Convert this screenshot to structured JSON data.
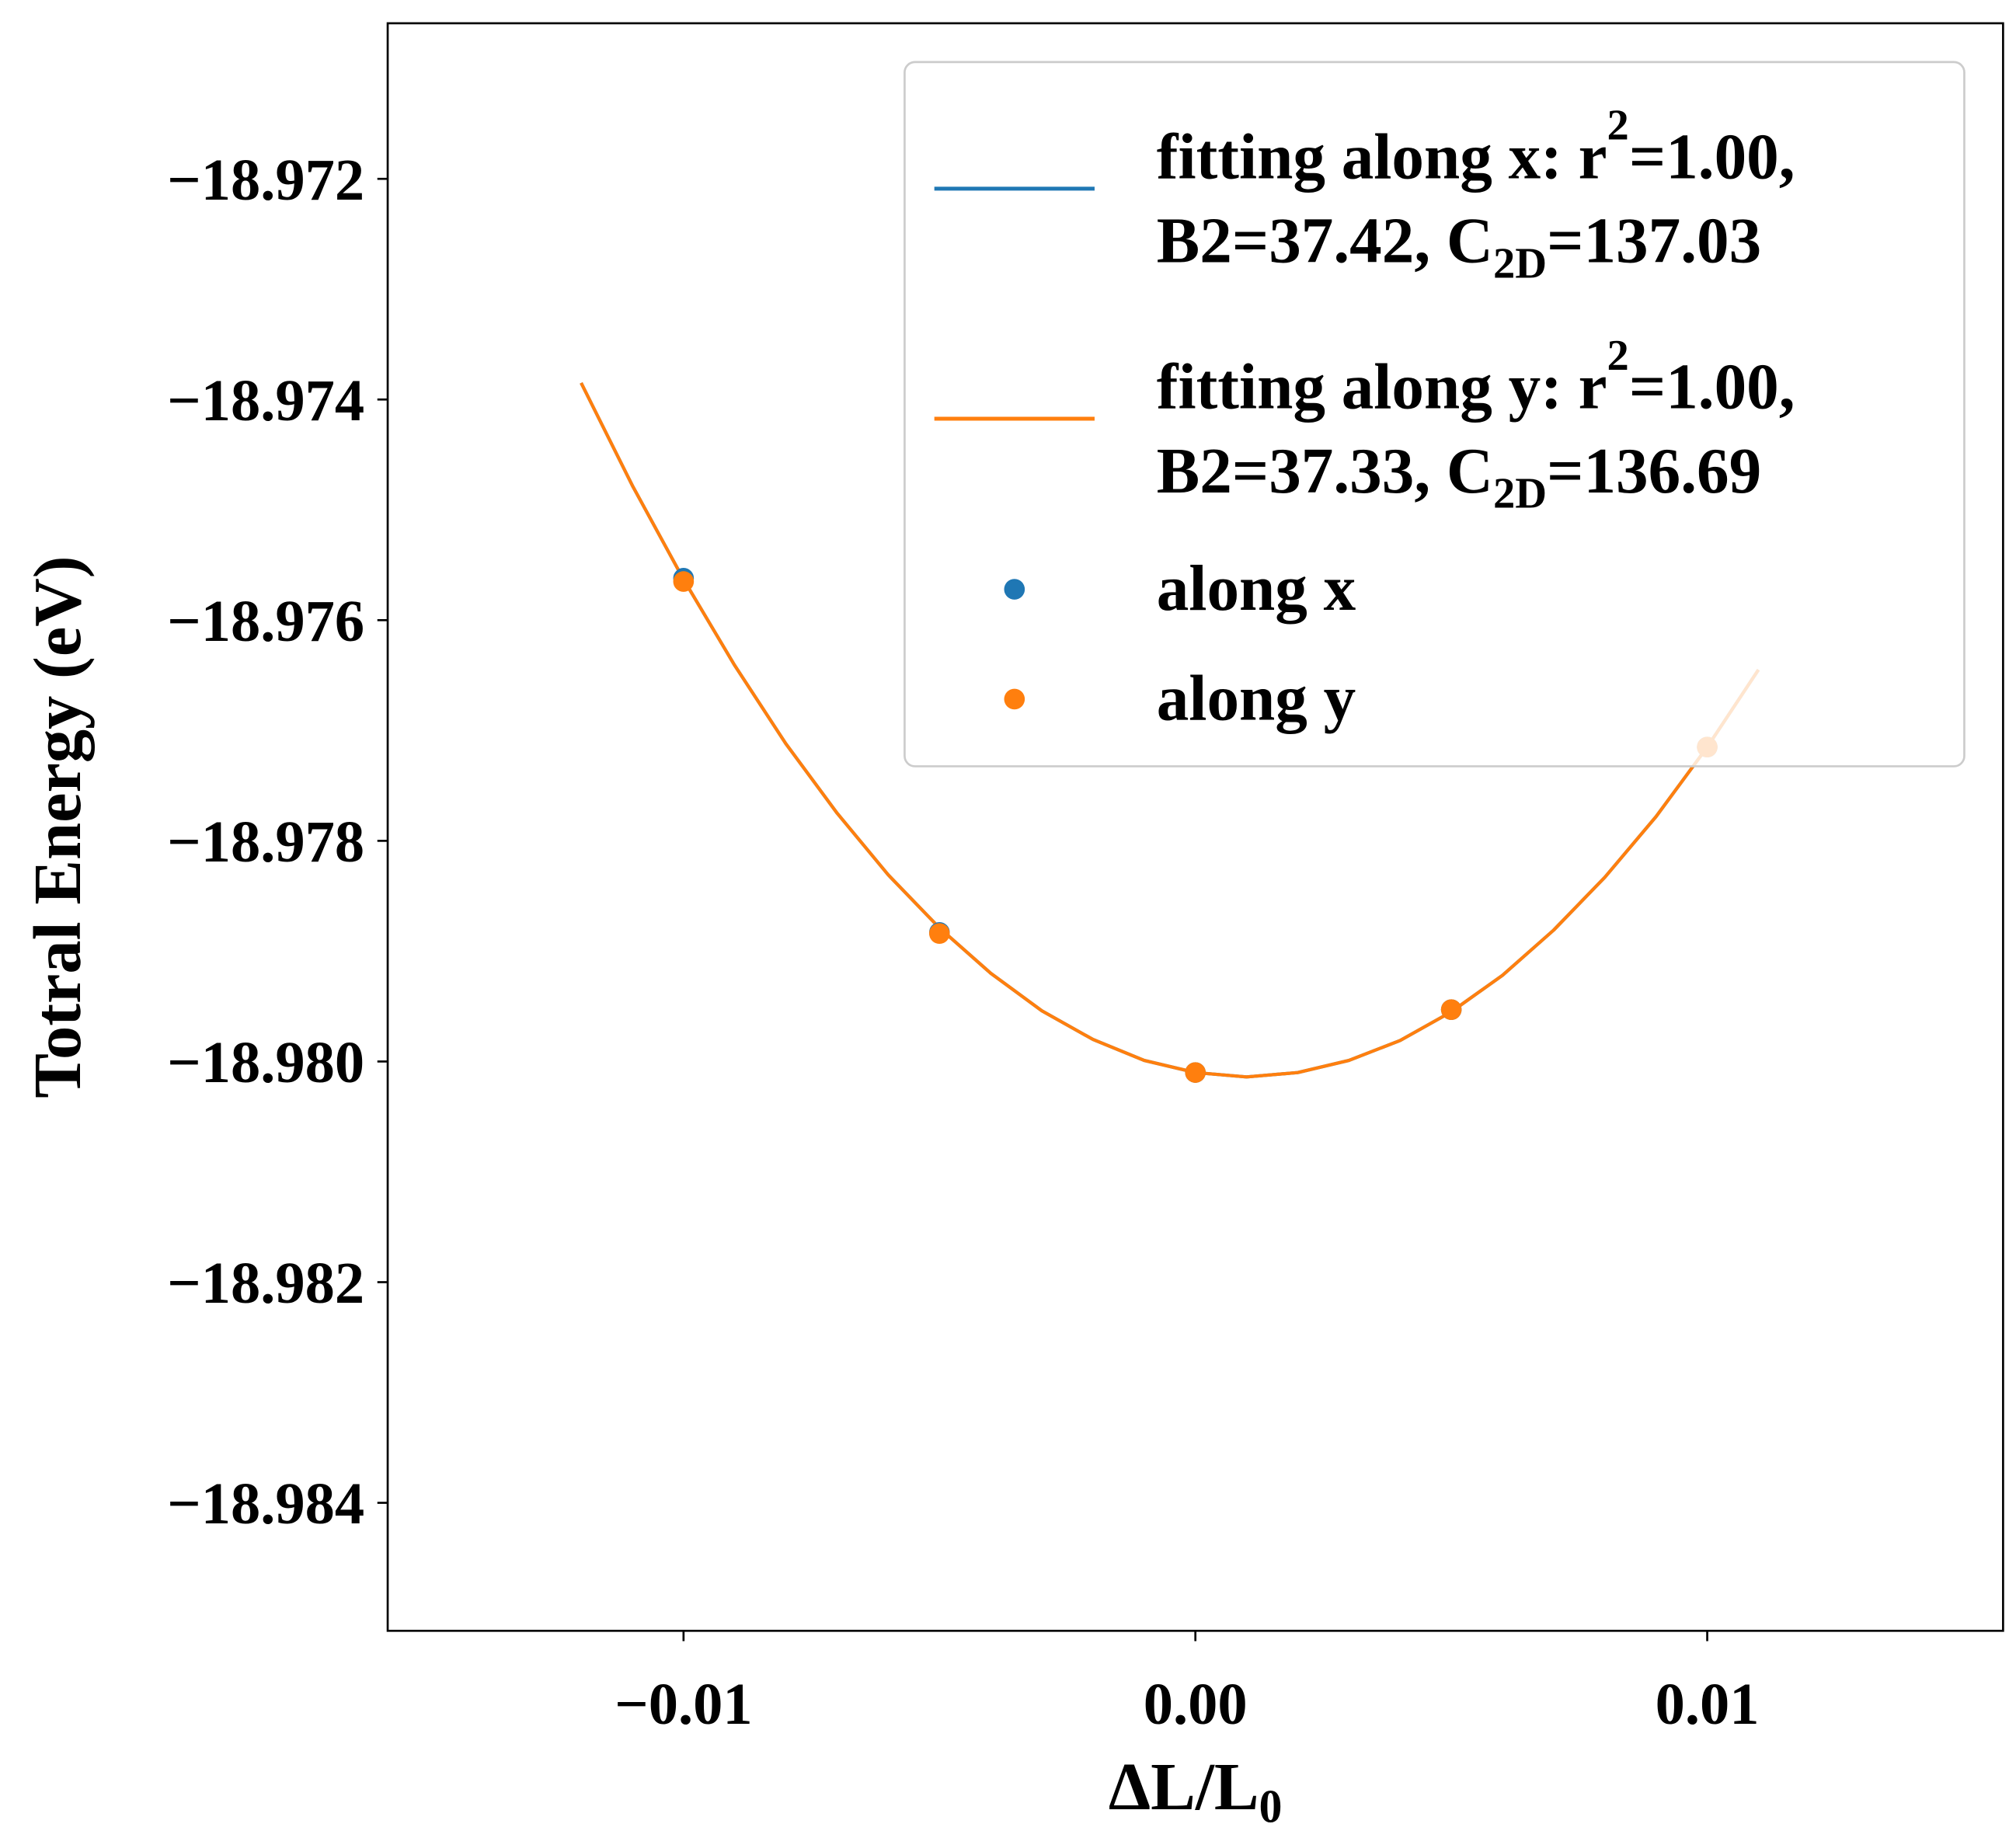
{
  "chart_data": {
    "type": "line",
    "title": "",
    "xlabel": "ΔL/L",
    "xlabel_sub": "0",
    "ylabel": "Totral Energy (eV)",
    "xlim": [
      -0.01578,
      0.01578
    ],
    "ylim": [
      -18.98516,
      -18.97059
    ],
    "x_ticks": [
      -0.01,
      0.0,
      0.01
    ],
    "x_tick_labels": [
      "−0.01",
      "0.00",
      "0.01"
    ],
    "y_ticks": [
      -18.972,
      -18.974,
      -18.976,
      -18.978,
      -18.98,
      -18.982,
      -18.984
    ],
    "y_tick_labels": [
      "−18.972",
      "−18.974",
      "−18.976",
      "−18.978",
      "−18.980",
      "−18.982",
      "−18.984"
    ],
    "grid": false,
    "legend_placement": "top-right",
    "colors": {
      "x": "#1f77b4",
      "y": "#ff7f0e"
    },
    "fit_x": [
      -0.012,
      -0.011,
      -0.01,
      -0.009,
      -0.008,
      -0.007,
      -0.006,
      -0.005,
      -0.004,
      -0.003,
      -0.002,
      -0.001,
      0.0,
      0.001,
      0.002,
      0.003,
      0.004,
      0.005,
      0.006,
      0.007,
      0.008,
      0.009,
      0.01,
      0.011
    ],
    "series": [
      {
        "name": "fitting along x",
        "kind": "line",
        "color": "#1f77b4",
        "values": [
          -18.97385,
          -18.97478,
          -18.97563,
          -18.97641,
          -18.97712,
          -18.97775,
          -18.97831,
          -18.97879,
          -18.9792,
          -18.97954,
          -18.9798,
          -18.97999,
          -18.9801,
          -18.98014,
          -18.9801,
          -18.97999,
          -18.97981,
          -18.97955,
          -18.97922,
          -18.97881,
          -18.97833,
          -18.97778,
          -18.97715,
          -18.97645
        ],
        "legend": {
          "line1a": "fitting along x: r",
          "sup": "2",
          "line1b": "=1.00,",
          "line2a": "B2=37.42, C",
          "sub": "2D",
          "line2b": "=137.03"
        }
      },
      {
        "name": "fitting along y",
        "kind": "line",
        "color": "#ff7f0e",
        "values": [
          -18.97385,
          -18.97478,
          -18.97563,
          -18.97641,
          -18.97712,
          -18.97775,
          -18.97831,
          -18.97879,
          -18.9792,
          -18.97954,
          -18.9798,
          -18.97999,
          -18.9801,
          -18.98014,
          -18.9801,
          -18.97999,
          -18.97981,
          -18.97955,
          -18.97922,
          -18.97881,
          -18.97833,
          -18.97778,
          -18.97715,
          -18.97645
        ],
        "legend": {
          "line1a": "fitting along y: r",
          "sup": "2",
          "line1b": "=1.00,",
          "line2a": "B2=37.33, C",
          "sub": "2D",
          "line2b": "=136.69"
        }
      },
      {
        "name": "along x",
        "kind": "scatter",
        "color": "#1f77b4",
        "x": [
          -0.01,
          -0.005,
          0.0,
          0.005,
          0.01
        ],
        "values": [
          -18.97562,
          -18.97883,
          -18.9801,
          -18.97953,
          -18.97715
        ]
      },
      {
        "name": "along y",
        "kind": "scatter",
        "color": "#ff7f0e",
        "x": [
          -0.01,
          -0.005,
          0.0,
          0.005,
          0.01
        ],
        "values": [
          -18.97565,
          -18.97884,
          -18.9801,
          -18.97953,
          -18.97715
        ]
      }
    ]
  }
}
